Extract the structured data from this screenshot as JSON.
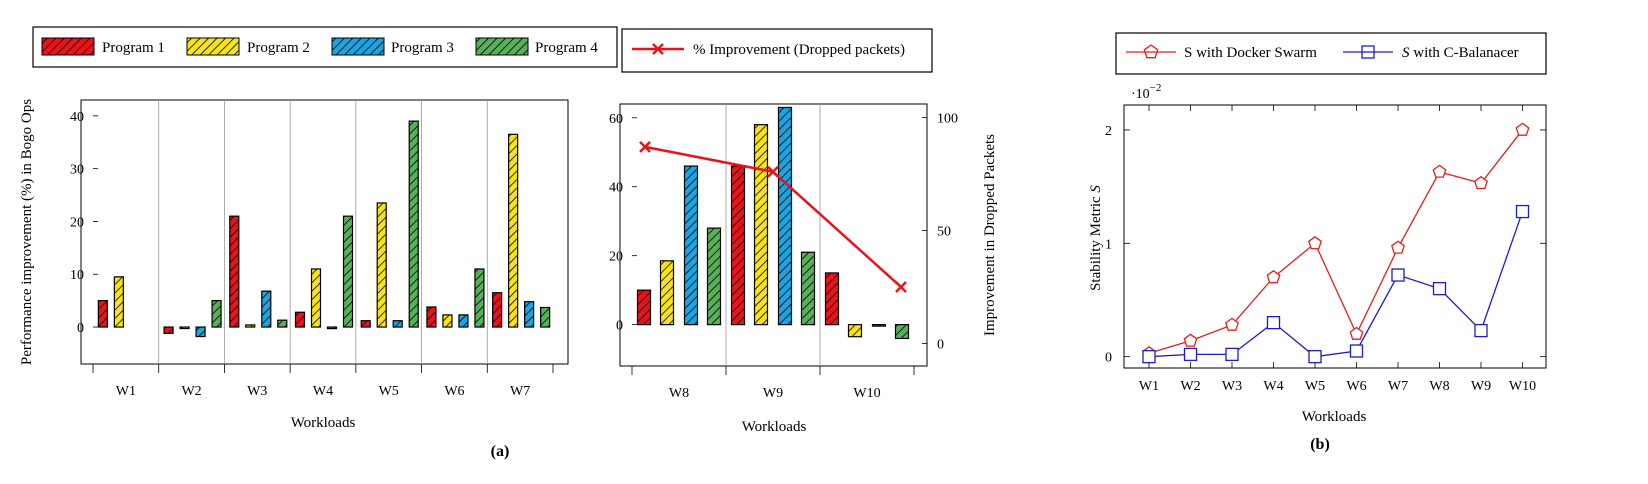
{
  "colors": {
    "program1": "#e8141c",
    "program2": "#f7e21c",
    "program3": "#1ca3e0",
    "program4": "#58b05a",
    "improvement_line": "#e8141c",
    "docker": "#e02020",
    "cbal": "#1c1cc8"
  },
  "legend_a": {
    "items": [
      "Program 1",
      "Program 2",
      "Program 3",
      "Program 4"
    ]
  },
  "legend_drop": {
    "label": "% Improvement (Dropped packets)"
  },
  "legend_b": {
    "docker_label": "S with Docker Swarm",
    "cbal_prefix": "S",
    "cbal_suffix": "with C-Balanacer"
  },
  "captions": {
    "a": "(a)",
    "b": "(b)"
  },
  "chart_data": [
    {
      "type": "bar",
      "title": "",
      "categories": [
        "W1",
        "W2",
        "W3",
        "W4",
        "W5",
        "W6",
        "W7"
      ],
      "xlabel": "Workloads",
      "ylabel": "Performance improvement (%) in Bogo Ops",
      "ylim": [
        -7,
        43
      ],
      "yticks": [
        0,
        10,
        20,
        30,
        40
      ],
      "series": [
        {
          "name": "Program 1",
          "values": [
            5,
            -1.2,
            21,
            2.8,
            1.2,
            3.8,
            6.5
          ]
        },
        {
          "name": "Program 2",
          "values": [
            9.5,
            0,
            0.4,
            11,
            23.5,
            2.3,
            36.5
          ]
        },
        {
          "name": "Program 3",
          "values": [
            null,
            -1.8,
            6.8,
            -0.3,
            1.2,
            2.3,
            4.8
          ]
        },
        {
          "name": "Program 4",
          "values": [
            null,
            5,
            1.3,
            21,
            39,
            11,
            3.7
          ]
        }
      ]
    },
    {
      "type": "bar",
      "title": "",
      "categories": [
        "W8",
        "W9",
        "W10"
      ],
      "xlabel": "Workloads",
      "ylabel": "",
      "ylim": [
        -12,
        64
      ],
      "yticks": [
        0,
        20,
        40,
        60
      ],
      "series": [
        {
          "name": "Program 1",
          "values": [
            10,
            46,
            15
          ]
        },
        {
          "name": "Program 2",
          "values": [
            18.5,
            58,
            -3.5
          ]
        },
        {
          "name": "Program 3",
          "values": [
            46,
            63,
            0
          ]
        },
        {
          "name": "Program 4",
          "values": [
            28,
            21,
            -4
          ]
        }
      ],
      "secondary_axis": {
        "type": "line",
        "name": "% Improvement (Dropped packets)",
        "ylabel": "Improvement in Dropped Packets",
        "ylim": [
          -10,
          106
        ],
        "yticks": [
          0,
          50,
          100
        ],
        "values": [
          87,
          76,
          25
        ]
      }
    },
    {
      "type": "line",
      "title": "",
      "x": [
        "W1",
        "W2",
        "W3",
        "W4",
        "W5",
        "W6",
        "W7",
        "W8",
        "W9",
        "W10"
      ],
      "xlabel": "Workloads",
      "ylabel": "Stability Metric S",
      "ylabel_prefix": "Stability Metric",
      "ylabel_var": "S",
      "scale_label": "·10",
      "scale_exp": "−2",
      "ylim": [
        -0.1,
        2.22
      ],
      "yticks": [
        0,
        1,
        2
      ],
      "series": [
        {
          "name": "S with Docker Swarm",
          "marker": "pentagon",
          "values": [
            0.03,
            0.14,
            0.28,
            0.7,
            1.0,
            0.2,
            0.96,
            1.63,
            1.53,
            2.0
          ]
        },
        {
          "name": "S with C-Balanacer",
          "marker": "square",
          "values": [
            0.0,
            0.02,
            0.02,
            0.3,
            0.0,
            0.05,
            0.72,
            0.6,
            0.23,
            1.28
          ]
        }
      ]
    }
  ]
}
